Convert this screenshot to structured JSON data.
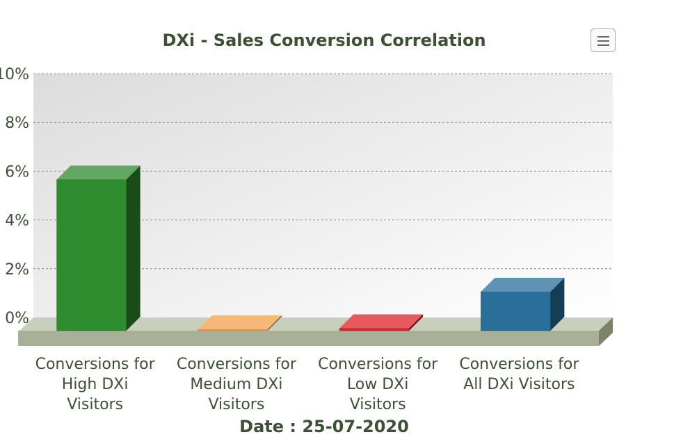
{
  "title": "DXi - Sales Conversion Correlation",
  "footer": "Date : 25-07-2020",
  "menu_icon": "hamburger-menu-icon",
  "chart_data": {
    "type": "bar",
    "title": "DXi - Sales Conversion Correlation",
    "xlabel": "",
    "ylabel": "",
    "ylim": [
      0,
      10
    ],
    "yticks": [
      "0%",
      "2%",
      "4%",
      "6%",
      "8%",
      "10%"
    ],
    "ytick_values": [
      0,
      2,
      4,
      6,
      8,
      10
    ],
    "categories": [
      "Conversions for High DXi Visitors",
      "Conversions for Medium DXi Visitors",
      "Conversions for Low DXi Visitors",
      "Conversions for All DXi Visitors"
    ],
    "category_lines": [
      [
        "Conversions for",
        "High DXi",
        "Visitors"
      ],
      [
        "Conversions for",
        "Medium DXi",
        "Visitors"
      ],
      [
        "Conversions for",
        "Low DXi",
        "Visitors"
      ],
      [
        "Conversions for",
        "All DXi Visitors"
      ]
    ],
    "values": [
      6.2,
      0,
      0.1,
      1.6
    ],
    "colors": [
      "#2e8b2e",
      "#f0a04b",
      "#e0202a",
      "#2a6f9a"
    ],
    "grid": true,
    "style": "3d"
  }
}
